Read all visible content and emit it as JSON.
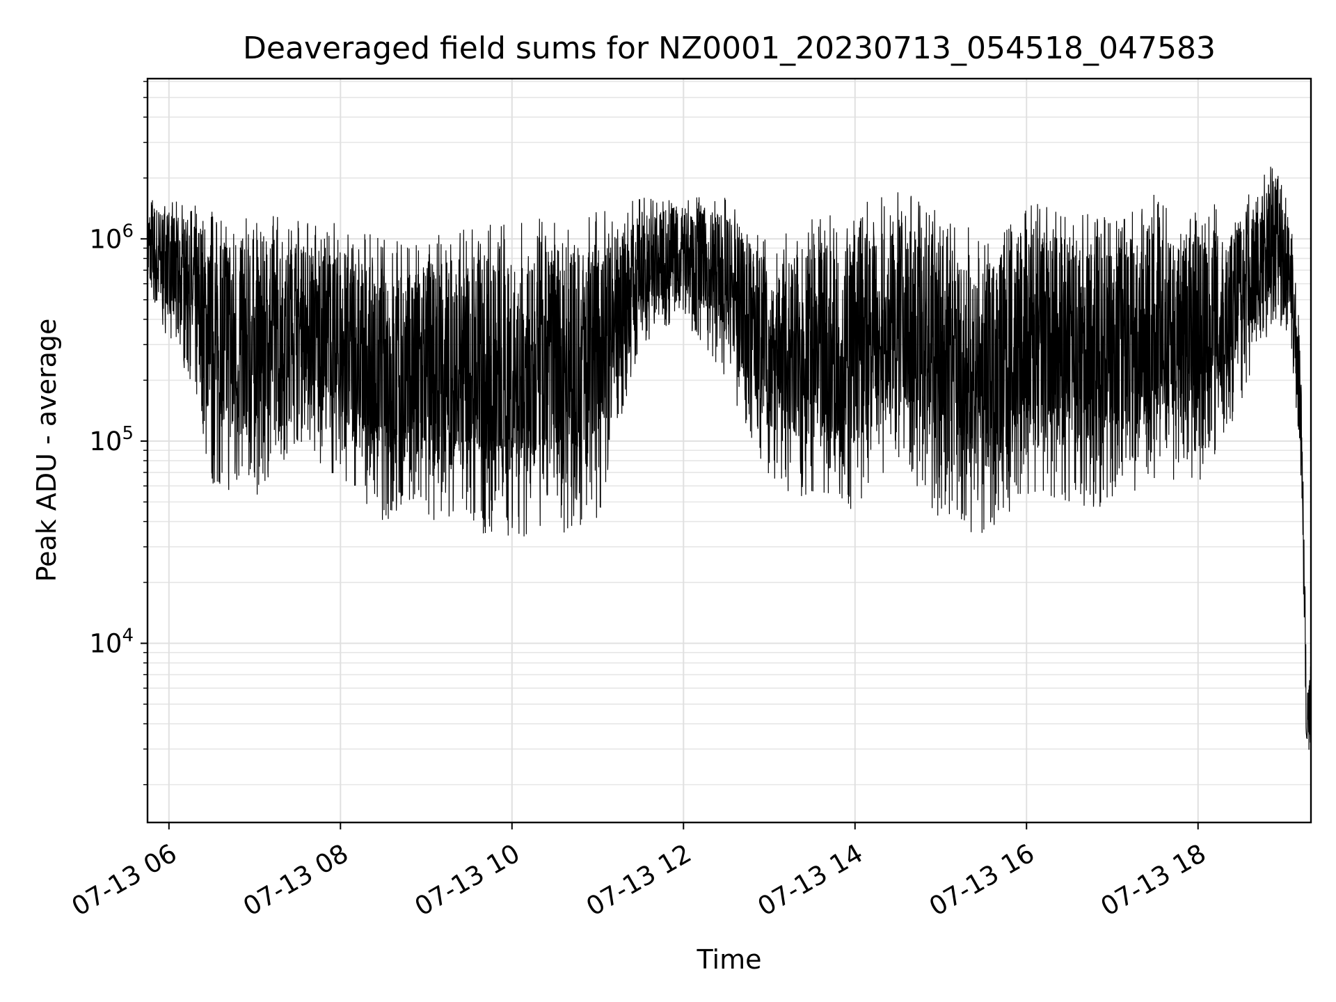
{
  "chart_data": {
    "type": "line",
    "title": "Deaveraged field sums for NZ0001_20230713_054518_047583",
    "xlabel": "Time",
    "ylabel": "Peak ADU - average",
    "x_scale": "time",
    "y_scale": "log",
    "xlim": [
      "2023-07-13 05:45",
      "2023-07-13 19:19"
    ],
    "ylim": [
      1300,
      6200000
    ],
    "x_ticks": [
      "07-13 06",
      "07-13 08",
      "07-13 10",
      "07-13 12",
      "07-13 14",
      "07-13 16",
      "07-13 18"
    ],
    "y_ticks": [
      {
        "base": "10",
        "exp": "4",
        "value": 10000
      },
      {
        "base": "10",
        "exp": "5",
        "value": 100000
      },
      {
        "base": "10",
        "exp": "6",
        "value": 1000000
      }
    ],
    "grid": true,
    "line_color": "#000000",
    "series": [
      {
        "x": [
          "2023-07-13 05:45",
          "2023-07-13 06:15",
          "2023-07-13 06:30",
          "2023-07-13 07:00",
          "2023-07-13 07:30",
          "2023-07-13 08:00",
          "2023-07-13 08:30",
          "2023-07-13 09:00",
          "2023-07-13 09:30",
          "2023-07-13 10:00",
          "2023-07-13 10:30",
          "2023-07-13 11:00",
          "2023-07-13 11:30",
          "2023-07-13 12:00",
          "2023-07-13 12:30",
          "2023-07-13 13:00",
          "2023-07-13 13:30",
          "2023-07-13 14:00",
          "2023-07-13 14:30",
          "2023-07-13 15:00",
          "2023-07-13 15:30",
          "2023-07-13 16:00",
          "2023-07-13 16:30",
          "2023-07-13 17:00",
          "2023-07-13 17:30",
          "2023-07-13 18:00",
          "2023-07-13 18:30",
          "2023-07-13 18:55",
          "2023-07-13 19:05",
          "2023-07-13 19:12",
          "2023-07-13 19:16",
          "2023-07-13 19:19"
        ],
        "low": [
          500000,
          200000,
          60000,
          50000,
          100000,
          60000,
          40000,
          40000,
          35000,
          33000,
          32000,
          40000,
          300000,
          400000,
          200000,
          60000,
          50000,
          45000,
          80000,
          40000,
          33000,
          50000,
          40000,
          50000,
          60000,
          60000,
          150000,
          400000,
          300000,
          60000,
          2500,
          3000
        ],
        "high": [
          1600000,
          1500000,
          1400000,
          1400000,
          1300000,
          1200000,
          1000000,
          1000000,
          1200000,
          1200000,
          1300000,
          1400000,
          1600000,
          1700000,
          1600000,
          1000000,
          1300000,
          1500000,
          1700000,
          1500000,
          1000000,
          1600000,
          1500000,
          1500000,
          1700000,
          1600000,
          1600000,
          2500000,
          1300000,
          400000,
          6000,
          8000
        ]
      }
    ]
  }
}
